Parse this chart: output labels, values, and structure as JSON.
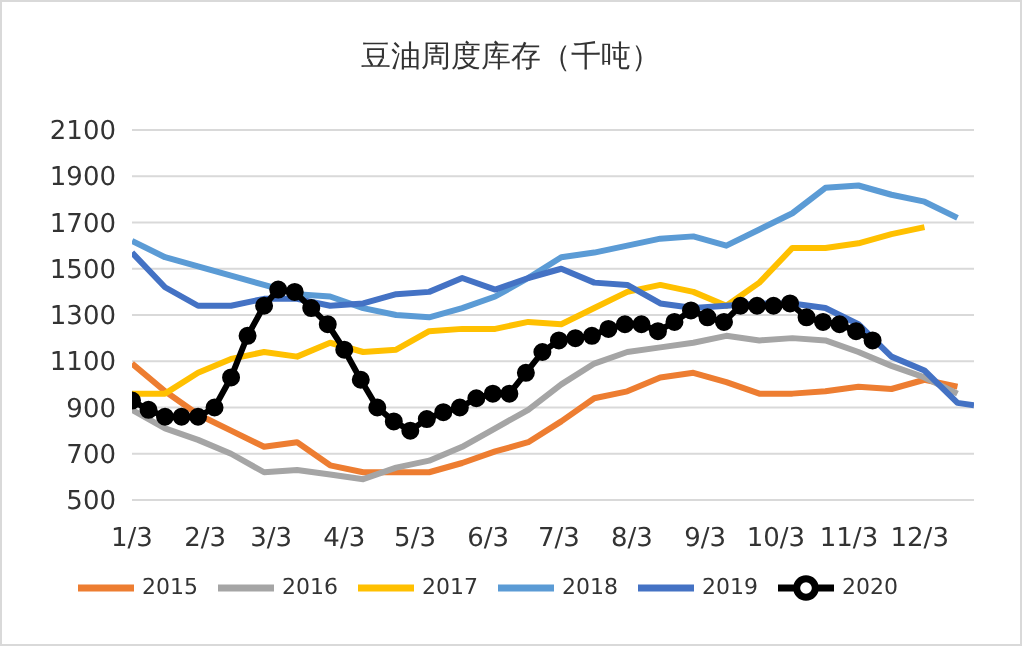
{
  "chart_data": {
    "type": "line",
    "title": "豆油周度库存（千吨）",
    "xlim": [
      "--01-03",
      "--12-26"
    ],
    "xticks": [
      {
        "value": "--01-03",
        "label": "1/3"
      },
      {
        "value": "--02-03",
        "label": "2/3"
      },
      {
        "value": "--03-03",
        "label": "3/3"
      },
      {
        "value": "--04-03",
        "label": "4/3"
      },
      {
        "value": "--05-03",
        "label": "5/3"
      },
      {
        "value": "--06-03",
        "label": "6/3"
      },
      {
        "value": "--07-03",
        "label": "7/3"
      },
      {
        "value": "--08-03",
        "label": "8/3"
      },
      {
        "value": "--09-03",
        "label": "9/3"
      },
      {
        "value": "--10-03",
        "label": "10/3"
      },
      {
        "value": "--11-03",
        "label": "11/3"
      },
      {
        "value": "--12-03",
        "label": "12/3"
      }
    ],
    "ylim": [
      500,
      2100
    ],
    "yticks": [
      500,
      700,
      900,
      1100,
      1300,
      1500,
      1700,
      1900,
      2100
    ],
    "grid": "y",
    "legend": "bottom",
    "marker": "none",
    "line_style": "solid",
    "series": [
      {
        "name": "2015",
        "color": "#ed7d31",
        "x": [
          "--01-03",
          "--01-17",
          "--01-31",
          "--02-14",
          "--02-28",
          "--03-14",
          "--03-28",
          "--04-11",
          "--04-25",
          "--05-09",
          "--05-23",
          "--06-06",
          "--06-20",
          "--07-04",
          "--07-18",
          "--08-01",
          "--08-15",
          "--08-29",
          "--09-12",
          "--09-26",
          "--10-10",
          "--10-24",
          "--11-07",
          "--11-21",
          "--12-05",
          "--12-19"
        ],
        "values": [
          1090,
          970,
          870,
          800,
          730,
          750,
          650,
          620,
          620,
          620,
          660,
          710,
          750,
          840,
          940,
          970,
          1030,
          1050,
          1010,
          960,
          960,
          970,
          990,
          980,
          1020,
          990
        ]
      },
      {
        "name": "2016",
        "color": "#a5a5a5",
        "x": [
          "--01-03",
          "--01-17",
          "--01-31",
          "--02-14",
          "--02-28",
          "--03-14",
          "--03-28",
          "--04-11",
          "--04-25",
          "--05-09",
          "--05-23",
          "--06-06",
          "--06-20",
          "--07-04",
          "--07-18",
          "--08-01",
          "--08-15",
          "--08-29",
          "--09-12",
          "--09-26",
          "--10-10",
          "--10-24",
          "--11-07",
          "--11-21",
          "--12-05",
          "--12-19"
        ],
        "values": [
          890,
          810,
          760,
          700,
          620,
          630,
          610,
          590,
          640,
          670,
          730,
          810,
          890,
          1000,
          1090,
          1140,
          1160,
          1180,
          1210,
          1190,
          1200,
          1190,
          1140,
          1080,
          1030,
          960
        ]
      },
      {
        "name": "2017",
        "color": "#ffc000",
        "x": [
          "--01-03",
          "--01-17",
          "--01-31",
          "--02-14",
          "--02-28",
          "--03-14",
          "--03-28",
          "--04-11",
          "--04-25",
          "--05-09",
          "--05-23",
          "--06-06",
          "--06-20",
          "--07-04",
          "--07-18",
          "--08-01",
          "--08-15",
          "--08-29",
          "--09-12",
          "--09-26",
          "--10-10",
          "--10-24",
          "--11-07",
          "--11-21",
          "--12-05"
        ],
        "values": [
          960,
          960,
          1050,
          1110,
          1140,
          1120,
          1180,
          1140,
          1150,
          1230,
          1240,
          1240,
          1270,
          1260,
          1330,
          1400,
          1430,
          1400,
          1340,
          1440,
          1590,
          1590,
          1610,
          1650,
          1680
        ]
      },
      {
        "name": "2018",
        "color": "#5b9bd5",
        "x": [
          "--01-03",
          "--01-17",
          "--01-31",
          "--02-14",
          "--02-28",
          "--03-14",
          "--03-28",
          "--04-11",
          "--04-25",
          "--05-09",
          "--05-23",
          "--06-06",
          "--06-20",
          "--07-04",
          "--07-18",
          "--08-01",
          "--08-15",
          "--08-29",
          "--09-12",
          "--09-26",
          "--10-10",
          "--10-24",
          "--11-07",
          "--11-21",
          "--12-05",
          "--12-19"
        ],
        "values": [
          1620,
          1550,
          1510,
          1470,
          1430,
          1390,
          1380,
          1330,
          1300,
          1290,
          1330,
          1380,
          1460,
          1550,
          1570,
          1600,
          1630,
          1640,
          1600,
          1670,
          1740,
          1850,
          1860,
          1820,
          1790,
          1720
        ]
      },
      {
        "name": "2019",
        "color": "#4472c4",
        "x": [
          "--01-03",
          "--01-17",
          "--01-31",
          "--02-14",
          "--02-28",
          "--03-14",
          "--03-28",
          "--04-11",
          "--04-25",
          "--05-09",
          "--05-23",
          "--06-06",
          "--06-20",
          "--07-04",
          "--07-18",
          "--08-01",
          "--08-15",
          "--08-29",
          "--09-12",
          "--09-26",
          "--10-10",
          "--10-24",
          "--11-07",
          "--11-21",
          "--12-05",
          "--12-19",
          "--12-26"
        ],
        "values": [
          1570,
          1420,
          1340,
          1340,
          1370,
          1370,
          1340,
          1350,
          1390,
          1400,
          1460,
          1410,
          1460,
          1500,
          1440,
          1430,
          1350,
          1330,
          1340,
          1350,
          1350,
          1330,
          1260,
          1120,
          1060,
          920,
          910
        ]
      },
      {
        "name": "2020",
        "color": "#000000",
        "marker": "circle",
        "x": [
          "--01-03",
          "--01-10",
          "--01-17",
          "--01-24",
          "--01-31",
          "--02-07",
          "--02-14",
          "--02-21",
          "--02-28",
          "--03-06",
          "--03-13",
          "--03-20",
          "--03-27",
          "--04-03",
          "--04-10",
          "--04-17",
          "--04-24",
          "--05-01",
          "--05-08",
          "--05-15",
          "--05-22",
          "--05-29",
          "--06-05",
          "--06-12",
          "--06-19",
          "--06-26",
          "--07-03",
          "--07-10",
          "--07-17",
          "--07-24",
          "--07-31",
          "--08-07",
          "--08-14",
          "--08-21",
          "--08-28",
          "--09-04",
          "--09-11",
          "--09-18",
          "--09-25",
          "--10-02",
          "--10-09",
          "--10-16",
          "--10-23",
          "--10-30",
          "--11-06",
          "--11-13"
        ],
        "values": [
          930,
          890,
          860,
          860,
          860,
          900,
          1030,
          1210,
          1340,
          1410,
          1400,
          1330,
          1260,
          1150,
          1020,
          900,
          840,
          800,
          850,
          880,
          900,
          940,
          960,
          960,
          1050,
          1140,
          1190,
          1200,
          1210,
          1240,
          1260,
          1260,
          1230,
          1270,
          1320,
          1290,
          1270,
          1340,
          1340,
          1340,
          1350,
          1290,
          1270,
          1260,
          1230,
          1190
        ]
      }
    ]
  }
}
